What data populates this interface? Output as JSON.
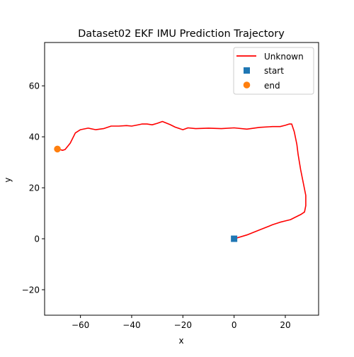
{
  "chart_data": {
    "type": "line",
    "title": "Dataset02 EKF IMU Prediction Trajectory",
    "xlabel": "x",
    "ylabel": "y",
    "xlim": [
      -74,
      33
    ],
    "ylim": [
      -30,
      77
    ],
    "x_ticks": [
      -60,
      -40,
      -20,
      0,
      20
    ],
    "y_ticks": [
      -20,
      0,
      20,
      40,
      60
    ],
    "x_tick_labels": [
      "−60",
      "−40",
      "−20",
      "0",
      "20"
    ],
    "y_tick_labels": [
      "−20",
      "0",
      "20",
      "40",
      "60"
    ],
    "grid": false,
    "legend": {
      "location": "top-right",
      "entries": [
        {
          "label": "Unknown",
          "marker": "line",
          "color": "#ff0000"
        },
        {
          "label": "start",
          "marker": "square",
          "color": "#1f77b4"
        },
        {
          "label": "end",
          "marker": "circle",
          "color": "#ff7f0e"
        }
      ]
    },
    "series": [
      {
        "name": "Unknown",
        "color": "#ff0000",
        "x": [
          0,
          5,
          10,
          15,
          18,
          20,
          22,
          24,
          26,
          27.5,
          28,
          28,
          27,
          26,
          25,
          24.5,
          23.5,
          22.5,
          21.5,
          20,
          18,
          15,
          10,
          5,
          0,
          -5,
          -10,
          -15,
          -18,
          -20,
          -23,
          -25,
          -28,
          -30,
          -32,
          -34,
          -36,
          -38,
          -40,
          -42,
          -45,
          -48,
          -51,
          -54,
          -57,
          -60,
          -62,
          -64,
          -66,
          -67,
          -68,
          -69
        ],
        "y": [
          0,
          1.5,
          3.5,
          5.5,
          6.5,
          7,
          7.5,
          8.5,
          9.5,
          10.5,
          13,
          17,
          22,
          27,
          33,
          37,
          42,
          45,
          45,
          44.5,
          44,
          44,
          43.7,
          43,
          43.5,
          43.2,
          43.4,
          43.2,
          43.5,
          42.8,
          43.8,
          44.8,
          46,
          45.3,
          44.7,
          45,
          45,
          44.6,
          44.2,
          44.4,
          44.2,
          44.2,
          43.2,
          42.8,
          43.4,
          42.8,
          41.5,
          37.5,
          35,
          34.7,
          35,
          35.2
        ]
      }
    ],
    "start": {
      "label": "start",
      "x": 0,
      "y": 0,
      "color": "#1f77b4"
    },
    "end": {
      "label": "end",
      "x": -69,
      "y": 35.2,
      "color": "#ff7f0e"
    }
  }
}
